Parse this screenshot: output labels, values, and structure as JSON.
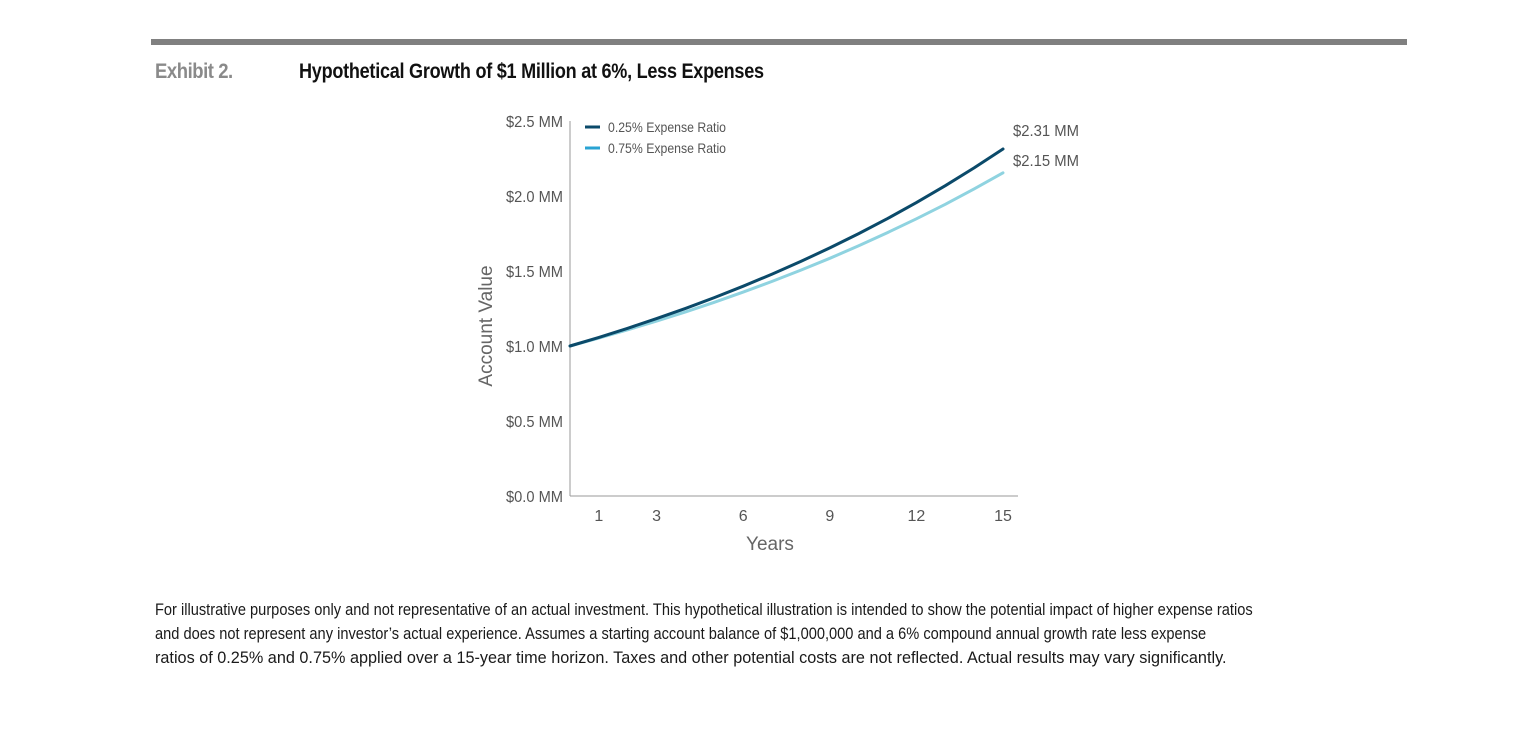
{
  "header": {
    "exhibit": "Exhibit 2.",
    "title": "Hypothetical Growth of $1 Million at 6%, Less Expenses"
  },
  "chart_data": {
    "type": "line",
    "xlabel": "Years",
    "ylabel": "Account Value",
    "xlim": [
      0,
      15
    ],
    "ylim": [
      0,
      2.5
    ],
    "x_ticks": [
      1,
      3,
      6,
      9,
      12,
      15
    ],
    "y_ticks": [
      {
        "value": 0.0,
        "label": "$0.0 MM"
      },
      {
        "value": 0.5,
        "label": "$0.5 MM"
      },
      {
        "value": 1.0,
        "label": "$1.0 MM"
      },
      {
        "value": 1.5,
        "label": "$1.5 MM"
      },
      {
        "value": 2.0,
        "label": "$2.0 MM"
      },
      {
        "value": 2.5,
        "label": "$2.5 MM"
      }
    ],
    "grid": false,
    "legend_position": "top-left",
    "x": [
      0,
      1,
      2,
      3,
      4,
      5,
      6,
      7,
      8,
      9,
      10,
      11,
      12,
      13,
      14,
      15
    ],
    "series": [
      {
        "name": "0.25% Expense Ratio",
        "color": "#0b4a6a",
        "values": [
          1.0,
          1.0575,
          1.1183,
          1.1826,
          1.2506,
          1.3225,
          1.3986,
          1.479,
          1.564,
          1.654,
          1.749,
          1.8496,
          1.9559,
          2.0684,
          2.1873,
          2.3131
        ],
        "end_label": "$2.31 MM"
      },
      {
        "name": "0.75% Expense Ratio",
        "color": "#8fd3e0",
        "values": [
          1.0,
          1.0525,
          1.1078,
          1.1659,
          1.2271,
          1.2916,
          1.3594,
          1.4308,
          1.5059,
          1.5849,
          1.6681,
          1.7557,
          1.8479,
          1.9449,
          2.047,
          2.1545
        ],
        "end_label": "$2.15 MM"
      }
    ]
  },
  "footnote": {
    "line1": "For illustrative purposes only and not representative of an actual investment. This hypothetical illustration is intended to show the potential impact of higher expense ratios",
    "line2": "and does not represent any investor’s actual experience. Assumes a starting account balance of $1,000,000 and a 6% compound annual growth rate less expense",
    "line3": "ratios of 0.25% and 0.75% applied over a 15-year time horizon. Taxes and other potential costs are not reflected. Actual results may vary significantly."
  }
}
